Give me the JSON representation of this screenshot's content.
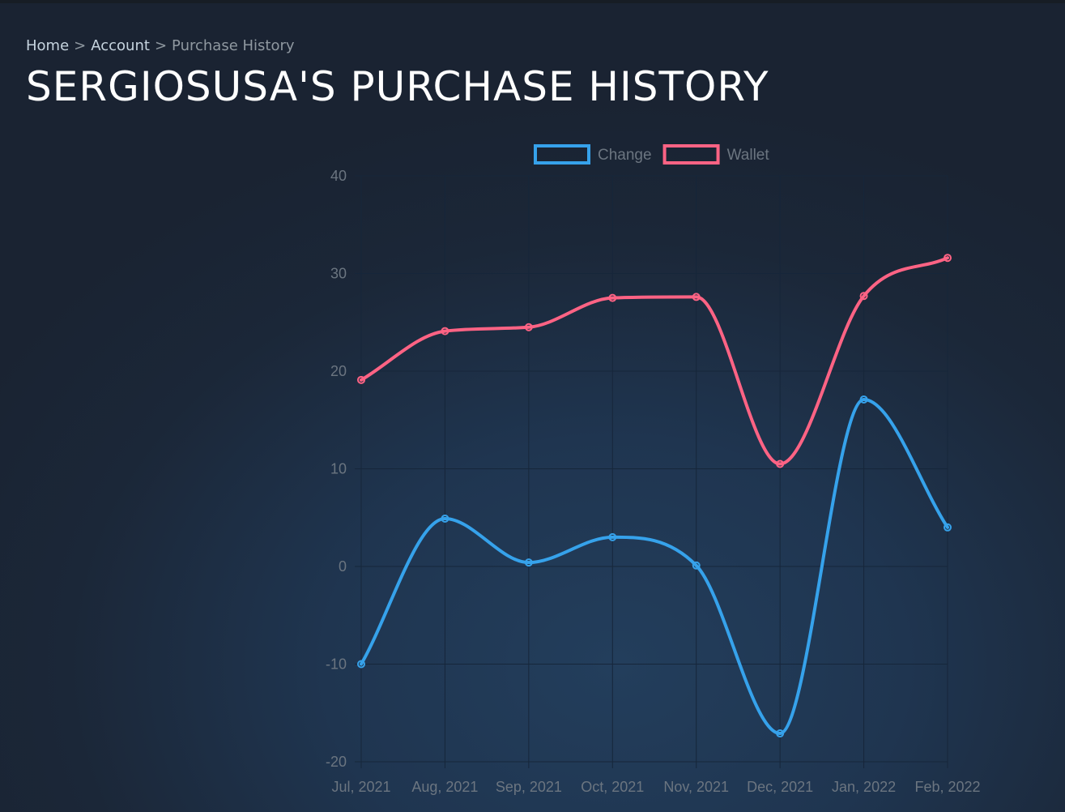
{
  "breadcrumb": {
    "home": "Home",
    "separator": ">",
    "account": "Account",
    "current": "Purchase History"
  },
  "page_title": "SERGIOSUSA'S PURCHASE HISTORY",
  "colors": {
    "change": "#36a2eb",
    "wallet": "#ff6384",
    "grid": "#16263a",
    "tick_text": "#6b7580"
  },
  "chart_data": {
    "type": "line",
    "categories": [
      "Jul, 2021",
      "Aug, 2021",
      "Sep, 2021",
      "Oct, 2021",
      "Nov, 2021",
      "Dec, 2021",
      "Jan, 2022",
      "Feb, 2022"
    ],
    "series": [
      {
        "name": "Change",
        "color": "#36a2eb",
        "values": [
          -10,
          4.9,
          0.4,
          3,
          0.1,
          -17.1,
          17.1,
          4
        ]
      },
      {
        "name": "Wallet",
        "color": "#ff6384",
        "values": [
          19.1,
          24.1,
          24.5,
          27.5,
          27.6,
          10.5,
          27.7,
          31.6
        ]
      }
    ],
    "ylim": [
      -20,
      40
    ],
    "yticks": [
      40,
      30,
      20,
      10,
      0,
      -10,
      -20
    ],
    "grid": true,
    "legend": "top",
    "curve": "smooth"
  }
}
